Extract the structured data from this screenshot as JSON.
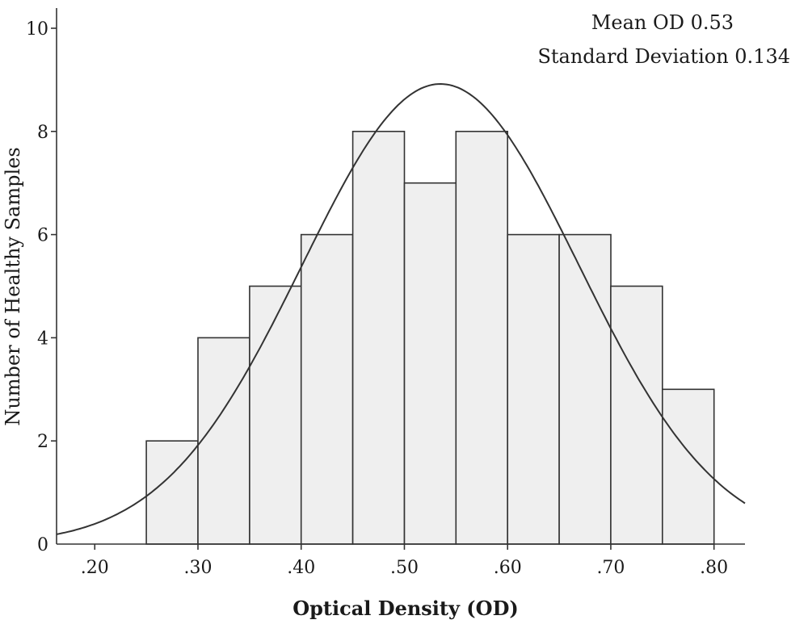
{
  "chart_data": {
    "type": "bar",
    "xlabel": "Optical Density (OD)",
    "ylabel": "Number of Healthy Samples",
    "xlim": [
      0.163,
      0.83
    ],
    "ylim": [
      0,
      10.5
    ],
    "x_ticks": [
      {
        "value": 0.2,
        "label": ".20"
      },
      {
        "value": 0.3,
        "label": ".30"
      },
      {
        "value": 0.4,
        "label": ".40"
      },
      {
        "value": 0.5,
        "label": ".50"
      },
      {
        "value": 0.6,
        "label": ".60"
      },
      {
        "value": 0.7,
        "label": ".70"
      },
      {
        "value": 0.8,
        "label": ".80"
      }
    ],
    "y_ticks": [
      {
        "value": 0,
        "label": "0"
      },
      {
        "value": 2,
        "label": "2"
      },
      {
        "value": 4,
        "label": "4"
      },
      {
        "value": 6,
        "label": "6"
      },
      {
        "value": 8,
        "label": "8"
      },
      {
        "value": 10,
        "label": "10"
      }
    ],
    "bins": [
      {
        "x0": 0.25,
        "x1": 0.3,
        "count": 2
      },
      {
        "x0": 0.3,
        "x1": 0.35,
        "count": 4
      },
      {
        "x0": 0.35,
        "x1": 0.4,
        "count": 5
      },
      {
        "x0": 0.4,
        "x1": 0.45,
        "count": 6
      },
      {
        "x0": 0.45,
        "x1": 0.5,
        "count": 8
      },
      {
        "x0": 0.5,
        "x1": 0.55,
        "count": 7
      },
      {
        "x0": 0.55,
        "x1": 0.6,
        "count": 8
      },
      {
        "x0": 0.6,
        "x1": 0.65,
        "count": 6
      },
      {
        "x0": 0.65,
        "x1": 0.7,
        "count": 6
      },
      {
        "x0": 0.7,
        "x1": 0.75,
        "count": 5
      },
      {
        "x0": 0.75,
        "x1": 0.8,
        "count": 3
      }
    ],
    "normal_curve": {
      "mean": 0.535,
      "sd": 0.134,
      "peak": 8.92
    },
    "annotations": [
      "Mean OD 0.53",
      "Standard Deviation 0.134"
    ],
    "grid": false
  }
}
